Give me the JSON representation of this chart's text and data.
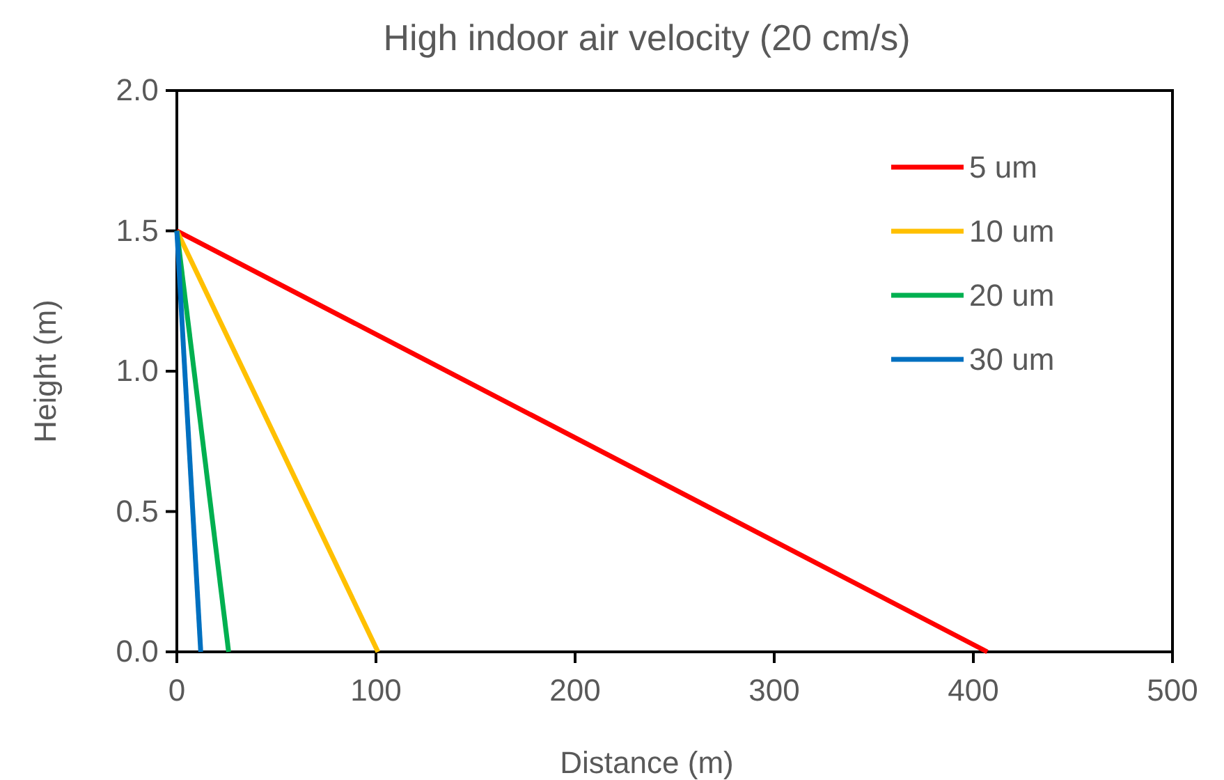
{
  "chart_data": {
    "type": "line",
    "title": "High indoor air velocity (20 cm/s)",
    "xlabel": "Distance (m)",
    "ylabel": "Height (m)",
    "xlim": [
      0,
      500
    ],
    "xticks": [
      0,
      100,
      200,
      300,
      400,
      500
    ],
    "ylim": [
      0,
      2
    ],
    "yticks": [
      {
        "value": 0,
        "label": "0.0"
      },
      {
        "value": 0.5,
        "label": "0.5"
      },
      {
        "value": 1,
        "label": "1.0"
      },
      {
        "value": 1.5,
        "label": "1.5"
      },
      {
        "value": 2,
        "label": "2.0"
      }
    ],
    "grid": false,
    "legend": "top right",
    "marker": "none",
    "line_style": "solid",
    "series": [
      {
        "name": "5 um",
        "color": "#ff0000",
        "x": [
          0,
          407
        ],
        "values": [
          1.5,
          0
        ]
      },
      {
        "name": "10 um",
        "color": "#ffc000",
        "x": [
          0,
          101
        ],
        "values": [
          1.5,
          0
        ]
      },
      {
        "name": "20 um",
        "color": "#00b050",
        "x": [
          0,
          26
        ],
        "values": [
          1.5,
          0
        ]
      },
      {
        "name": "30 um",
        "color": "#0070c0",
        "x": [
          0,
          12
        ],
        "values": [
          1.5,
          0
        ]
      }
    ]
  }
}
